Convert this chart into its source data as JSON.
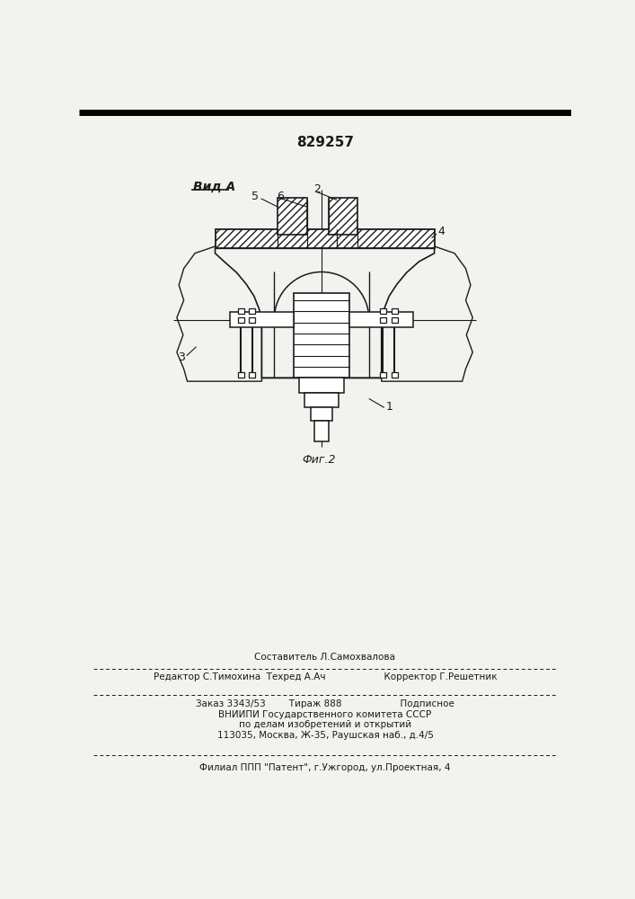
{
  "patent_number": "829257",
  "label_vid_a": "Вид А",
  "label_fig": "Фиг.2",
  "footer_line1": "Составитель Л.Самохвалова",
  "footer_line2": "Редактор С.Тимохина  Техред А.Ач                    Корректор Г.Решетник",
  "footer_line3": "Заказ 3343/53        Тираж 888                    Подписное",
  "footer_line4": "ВНИИПИ Государственного комитета СССР",
  "footer_line5": "по делам изобретений и открытий",
  "footer_line6": "113035, Москва, Ж-35, Раушская наб., д.4/5",
  "footer_line7": "Филиал ППП \"Патент\", г.Ужгород, ул.Проектная, 4",
  "bg_color": "#f2f2ee",
  "line_color": "#1a1a1a"
}
